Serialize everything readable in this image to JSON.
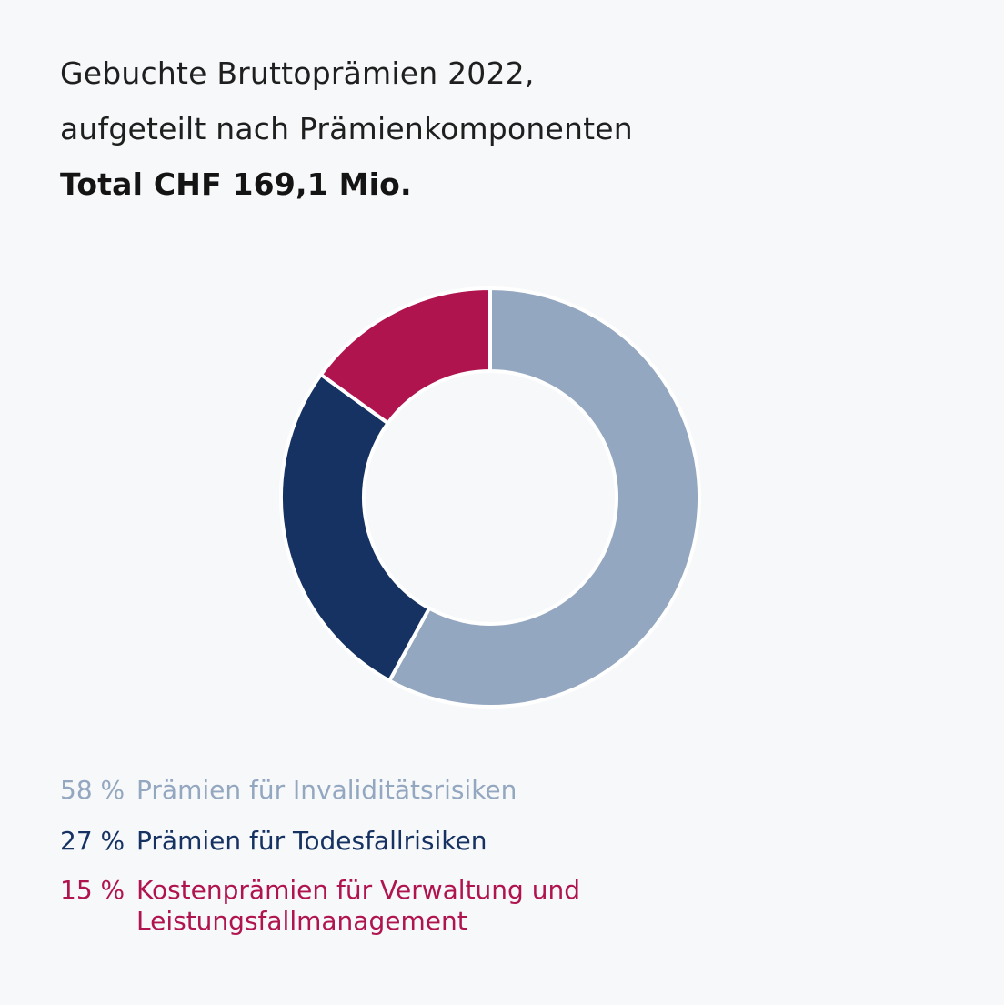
{
  "chart_data": {
    "type": "pie",
    "title": "Gebuchte Bruttoprämien 2022,",
    "subtitle": "aufgeteilt nach Prämienkomponenten",
    "total": "Total CHF 169,1 Mio.",
    "categories": [
      "Prämien für Invaliditätsrisiken",
      "Prämien für Todesfallrisiken",
      "Kostenprämien für Verwaltung und Leistungsfallmanagement"
    ],
    "values": [
      58,
      27,
      15
    ],
    "value_labels": [
      "58 %",
      "27 %",
      "15 %"
    ],
    "colors": [
      "#94a7c0",
      "#163262",
      "#b0144f"
    ],
    "legend": [
      {
        "pct": "58 %",
        "label": "Prämien für Invaliditätsrisiken",
        "color": "#94a7c0"
      },
      {
        "pct": "27 %",
        "label": "Prämien für Todesfallrisiken",
        "color": "#163262"
      },
      {
        "pct": "15 %",
        "label": "Kostenprämien für Verwaltung und Leistungsfallmanagement",
        "color": "#b0144f"
      }
    ]
  }
}
